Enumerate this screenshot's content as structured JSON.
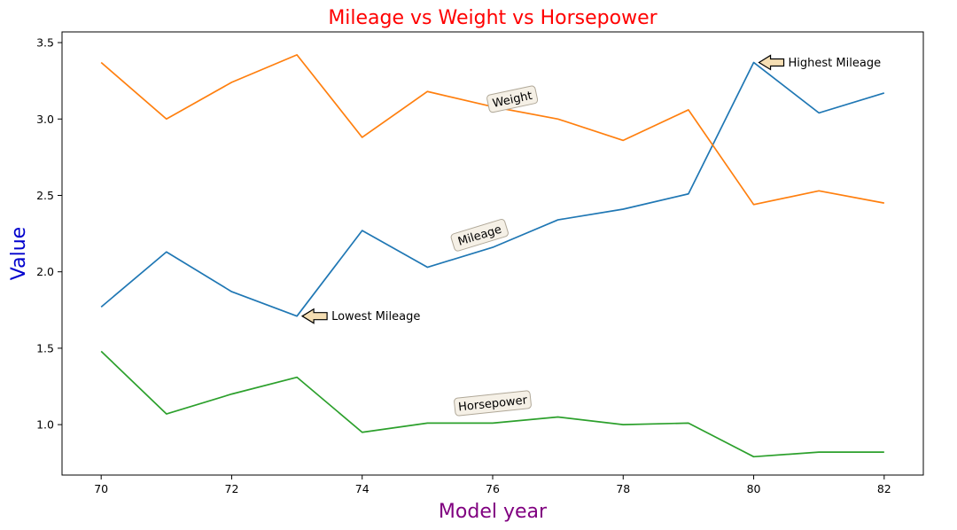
{
  "chart_data": {
    "type": "line",
    "title": "Mileage vs Weight vs Horsepower",
    "xlabel": "Model year",
    "ylabel": "Value",
    "x": [
      70,
      71,
      72,
      73,
      74,
      75,
      76,
      77,
      78,
      79,
      80,
      81,
      82
    ],
    "xlim": [
      69.4,
      82.6
    ],
    "ylim": [
      0.67,
      3.57
    ],
    "xticks": [
      70,
      72,
      74,
      76,
      78,
      80,
      82
    ],
    "yticks": [
      1.0,
      1.5,
      2.0,
      2.5,
      3.0,
      3.5
    ],
    "ytick_labels": [
      "1.0",
      "1.5",
      "2.0",
      "2.5",
      "3.0",
      "3.5"
    ],
    "grid": false,
    "series": [
      {
        "name": "Mileage",
        "color": "#1f77b4",
        "values": [
          1.77,
          2.13,
          1.87,
          1.71,
          2.27,
          2.03,
          2.16,
          2.34,
          2.41,
          2.51,
          3.37,
          3.04,
          3.17
        ]
      },
      {
        "name": "Weight",
        "color": "#ff7f0e",
        "values": [
          3.37,
          3.0,
          3.24,
          3.42,
          2.88,
          3.18,
          3.08,
          3.0,
          2.86,
          3.06,
          2.44,
          2.53,
          2.45
        ]
      },
      {
        "name": "Horsepower",
        "color": "#2ca02c",
        "values": [
          1.48,
          1.07,
          1.2,
          1.31,
          0.95,
          1.01,
          1.01,
          1.05,
          1.0,
          1.01,
          0.79,
          0.82,
          0.82
        ]
      }
    ],
    "series_labels": [
      {
        "text": "Weight",
        "x": 76.3,
        "y": 3.13,
        "rotation": -12
      },
      {
        "text": "Mileage",
        "x": 75.8,
        "y": 2.24,
        "rotation": -17
      },
      {
        "text": "Horsepower",
        "x": 76.0,
        "y": 1.14,
        "rotation": -6
      }
    ],
    "annotations": [
      {
        "text": "Highest Mileage",
        "x": 80,
        "y": 3.37
      },
      {
        "text": "Lowest Mileage",
        "x": 73,
        "y": 1.71
      }
    ],
    "colors": {
      "title": "#ff0000",
      "xlabel": "#800080",
      "ylabel": "#0000cd",
      "arrow_fill": "#f5deb3",
      "label_box_fill": "#f5f0e6",
      "label_box_edge": "#b0a898"
    }
  }
}
